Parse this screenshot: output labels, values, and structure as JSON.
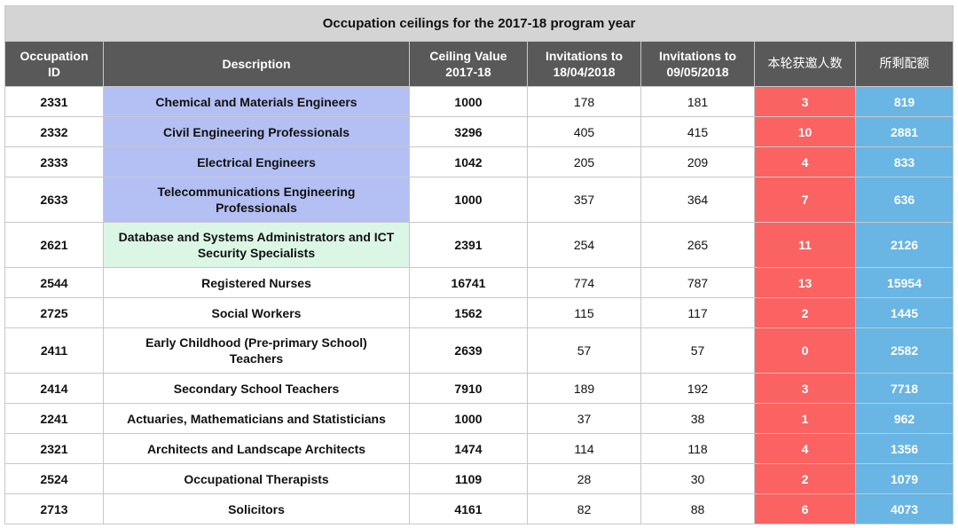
{
  "title": "Occupation ceilings for the 2017-18 program year",
  "headers": {
    "id": [
      "Occupation",
      "ID"
    ],
    "desc": "Description",
    "ceiling": [
      "Ceiling Value",
      "2017-18"
    ],
    "inv1": [
      "Invitations to",
      "18/04/2018"
    ],
    "inv2": [
      "Invitations to",
      "09/05/2018"
    ],
    "round": "本轮获邀人数",
    "remaining": "所剩配额"
  },
  "colors": {
    "header_bg": "#595959",
    "title_bg": "#d4d4d4",
    "engineering_bg": "#b4c0f4",
    "ict_bg": "#dcf6e6",
    "round_bg": "#fb6262",
    "remaining_bg": "#69b5e4"
  },
  "rows": [
    {
      "id": "2331",
      "desc": [
        "Chemical and Materials Engineers"
      ],
      "ceiling": "1000",
      "inv1": "178",
      "inv2": "181",
      "round": "3",
      "remaining": "819",
      "highlight": "blue"
    },
    {
      "id": "2332",
      "desc": [
        "Civil Engineering Professionals"
      ],
      "ceiling": "3296",
      "inv1": "405",
      "inv2": "415",
      "round": "10",
      "remaining": "2881",
      "highlight": "blue"
    },
    {
      "id": "2333",
      "desc": [
        "Electrical Engineers"
      ],
      "ceiling": "1042",
      "inv1": "205",
      "inv2": "209",
      "round": "4",
      "remaining": "833",
      "highlight": "blue"
    },
    {
      "id": "2633",
      "desc": [
        "Telecommunications Engineering",
        "Professionals"
      ],
      "ceiling": "1000",
      "inv1": "357",
      "inv2": "364",
      "round": "7",
      "remaining": "636",
      "highlight": "blue"
    },
    {
      "id": "2621",
      "desc": [
        "Database and Systems Administrators and ICT",
        "Security Specialists"
      ],
      "ceiling": "2391",
      "inv1": "254",
      "inv2": "265",
      "round": "11",
      "remaining": "2126",
      "highlight": "green"
    },
    {
      "id": "2544",
      "desc": [
        "Registered Nurses"
      ],
      "ceiling": "16741",
      "inv1": "774",
      "inv2": "787",
      "round": "13",
      "remaining": "15954",
      "highlight": ""
    },
    {
      "id": "2725",
      "desc": [
        "Social Workers"
      ],
      "ceiling": "1562",
      "inv1": "115",
      "inv2": "117",
      "round": "2",
      "remaining": "1445",
      "highlight": ""
    },
    {
      "id": "2411",
      "desc": [
        "Early Childhood (Pre-primary School)",
        "Teachers"
      ],
      "ceiling": "2639",
      "inv1": "57",
      "inv2": "57",
      "round": "0",
      "remaining": "2582",
      "highlight": ""
    },
    {
      "id": "2414",
      "desc": [
        "Secondary School Teachers"
      ],
      "ceiling": "7910",
      "inv1": "189",
      "inv2": "192",
      "round": "3",
      "remaining": "7718",
      "highlight": ""
    },
    {
      "id": "2241",
      "desc": [
        "Actuaries, Mathematicians and Statisticians"
      ],
      "ceiling": "1000",
      "inv1": "37",
      "inv2": "38",
      "round": "1",
      "remaining": "962",
      "highlight": ""
    },
    {
      "id": "2321",
      "desc": [
        "Architects and Landscape Architects"
      ],
      "ceiling": "1474",
      "inv1": "114",
      "inv2": "118",
      "round": "4",
      "remaining": "1356",
      "highlight": ""
    },
    {
      "id": "2524",
      "desc": [
        "Occupational Therapists"
      ],
      "ceiling": "1109",
      "inv1": "28",
      "inv2": "30",
      "round": "2",
      "remaining": "1079",
      "highlight": ""
    },
    {
      "id": "2713",
      "desc": [
        "Solicitors"
      ],
      "ceiling": "4161",
      "inv1": "82",
      "inv2": "88",
      "round": "6",
      "remaining": "4073",
      "highlight": ""
    }
  ]
}
